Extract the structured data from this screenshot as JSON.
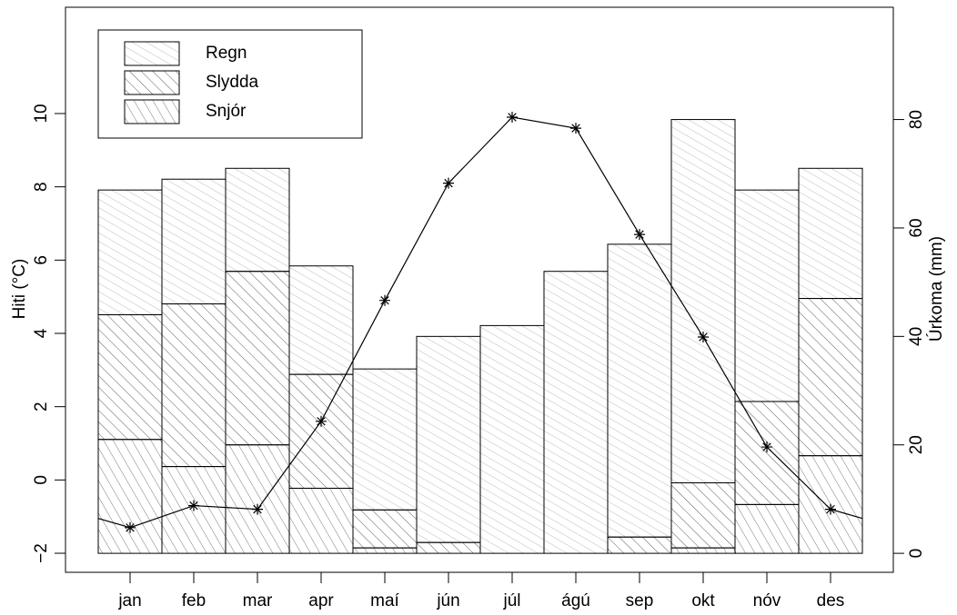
{
  "chart_data": {
    "type": "bar",
    "categories": [
      "jan",
      "feb",
      "mar",
      "apr",
      "maí",
      "jún",
      "júl",
      "ágú",
      "sep",
      "okt",
      "nóv",
      "des"
    ],
    "series": [
      {
        "name": "Snjór",
        "color": "#555555",
        "axis": "y2",
        "values": [
          21,
          16,
          20,
          12,
          1,
          0,
          0,
          0,
          0,
          1,
          9,
          18
        ]
      },
      {
        "name": "Slydda",
        "color": "#333333",
        "axis": "y2",
        "values": [
          23,
          30,
          32,
          21,
          7,
          2,
          0,
          0,
          3,
          12,
          19,
          29
        ]
      },
      {
        "name": "Regn",
        "color": "#aaaaaa",
        "axis": "y2",
        "values": [
          23,
          23,
          19,
          20,
          26,
          38,
          42,
          52,
          54,
          67,
          39,
          24
        ]
      },
      {
        "type": "line",
        "color": "#000000",
        "axis": "y",
        "values": [
          -1.3,
          -0.7,
          -0.8,
          1.6,
          4.9,
          8.1,
          9.9,
          9.6,
          6.7,
          3.9,
          0.9,
          -0.8
        ]
      }
    ],
    "ylabel": "Hiti (°C)",
    "y2label": "Úrkoma (mm)",
    "ylim": [
      -2.52,
      12.9
    ],
    "yticks": [
      {
        "value": -2,
        "label": "−2"
      },
      0,
      2,
      4,
      6,
      8,
      10
    ],
    "y2lim": [
      -3.5,
      100.7
    ],
    "y2ticks": [
      0,
      20,
      40,
      60,
      80
    ],
    "legend": "top-left"
  }
}
